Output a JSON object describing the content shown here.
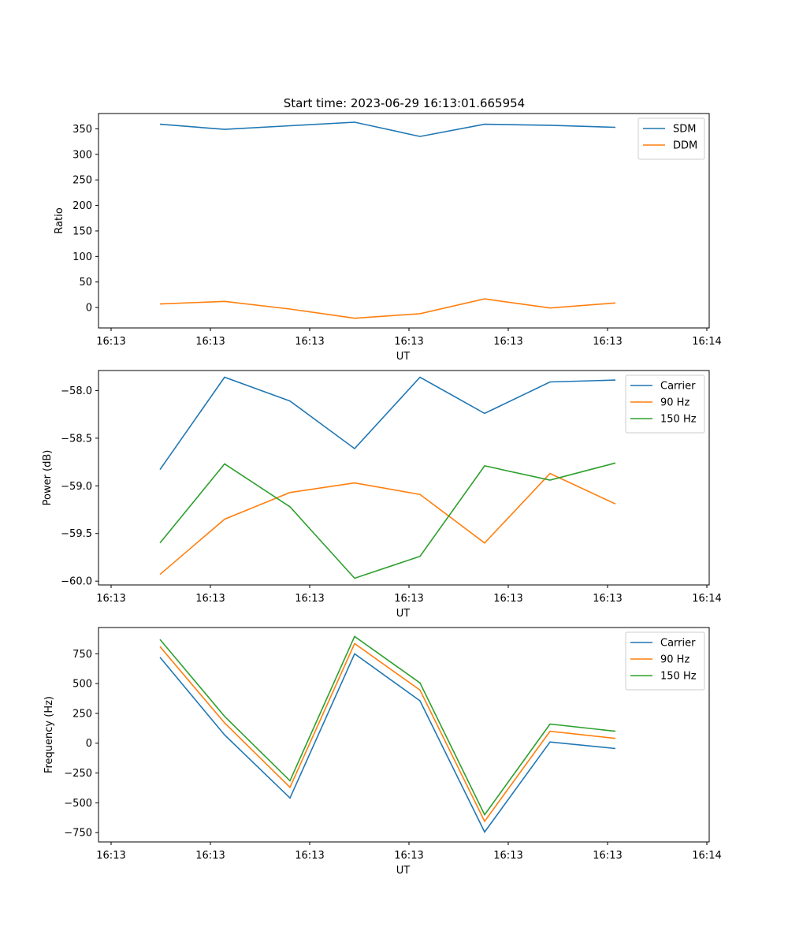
{
  "figure": {
    "title": "Start time: 2023-06-29 16:13:01.665954"
  },
  "chart_data": [
    {
      "type": "line",
      "xlabel": "UT",
      "ylabel": "Ratio",
      "x_tick_labels": [
        "16:13",
        "16:13",
        "16:13",
        "16:13",
        "16:13",
        "16:13",
        "16:14"
      ],
      "yticks": [
        0,
        50,
        100,
        150,
        200,
        250,
        300,
        350
      ],
      "ylim": [
        -40,
        380
      ],
      "grid": false,
      "legend": "top-right",
      "series": [
        {
          "name": "SDM",
          "color": "#1f77b4",
          "values": [
            359,
            349,
            356,
            363,
            335,
            359,
            357,
            353
          ]
        },
        {
          "name": "DDM",
          "color": "#ff7f0e",
          "values": [
            7,
            12,
            -3,
            -21,
            -12,
            17,
            -1,
            9
          ]
        }
      ]
    },
    {
      "type": "line",
      "xlabel": "UT",
      "ylabel": "Power (dB)",
      "x_tick_labels": [
        "16:13",
        "16:13",
        "16:13",
        "16:13",
        "16:13",
        "16:13",
        "16:14"
      ],
      "yticks": [
        -60.0,
        -59.5,
        -59.0,
        -58.5,
        -58.0
      ],
      "ytick_labels": [
        "−60.0",
        "−59.5",
        "−59.0",
        "−58.5",
        "−58.0"
      ],
      "ylim": [
        -60.04,
        -57.79
      ],
      "grid": false,
      "legend": "top-right",
      "series": [
        {
          "name": "Carrier",
          "color": "#1f77b4",
          "values": [
            -58.83,
            -57.86,
            -58.11,
            -58.61,
            -57.86,
            -58.24,
            -57.91,
            -57.89
          ]
        },
        {
          "name": "90 Hz",
          "color": "#ff7f0e",
          "values": [
            -59.93,
            -59.35,
            -59.07,
            -58.97,
            -59.09,
            -59.6,
            -58.87,
            -59.19
          ]
        },
        {
          "name": "150 Hz",
          "color": "#2ca02c",
          "values": [
            -59.6,
            -58.77,
            -59.22,
            -59.97,
            -59.74,
            -58.79,
            -58.94,
            -58.76
          ]
        }
      ]
    },
    {
      "type": "line",
      "xlabel": "UT",
      "ylabel": "Frequency (Hz)",
      "x_tick_labels": [
        "16:13",
        "16:13",
        "16:13",
        "16:13",
        "16:13",
        "16:13",
        "16:14"
      ],
      "yticks": [
        -750,
        -500,
        -250,
        0,
        250,
        500,
        750
      ],
      "ytick_labels": [
        "−750",
        "−500",
        "−250",
        "0",
        "250",
        "500",
        "750"
      ],
      "ylim": [
        -828,
        970
      ],
      "grid": false,
      "legend": "top-right",
      "series": [
        {
          "name": "Carrier",
          "color": "#1f77b4",
          "values": [
            720,
            70,
            -460,
            750,
            355,
            -745,
            10,
            -45
          ]
        },
        {
          "name": "90 Hz",
          "color": "#ff7f0e",
          "values": [
            810,
            170,
            -370,
            835,
            445,
            -655,
            100,
            40
          ]
        },
        {
          "name": "150 Hz",
          "color": "#2ca02c",
          "values": [
            870,
            225,
            -315,
            895,
            505,
            -600,
            160,
            100
          ]
        }
      ]
    }
  ]
}
